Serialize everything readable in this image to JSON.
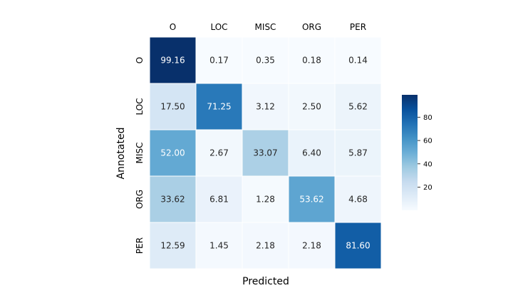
{
  "chart_data": {
    "type": "heatmap",
    "title": "",
    "xlabel": "Predicted",
    "ylabel": "Annotated",
    "x_categories": [
      "O",
      "LOC",
      "MISC",
      "ORG",
      "PER"
    ],
    "y_categories": [
      "O",
      "LOC",
      "MISC",
      "ORG",
      "PER"
    ],
    "x_tick_position": "top",
    "values": [
      [
        99.16,
        0.17,
        0.35,
        0.18,
        0.14
      ],
      [
        17.5,
        71.25,
        3.12,
        2.5,
        5.62
      ],
      [
        52.0,
        2.67,
        33.07,
        6.4,
        5.87
      ],
      [
        33.62,
        6.81,
        1.28,
        53.62,
        4.68
      ],
      [
        12.59,
        1.45,
        2.18,
        2.18,
        81.6
      ]
    ],
    "value_labels": [
      [
        "99.16",
        "0.17",
        "0.35",
        "0.18",
        "0.14"
      ],
      [
        "17.50",
        "71.25",
        "3.12",
        "2.50",
        "5.62"
      ],
      [
        "52.00",
        "2.67",
        "33.07",
        "6.40",
        "5.87"
      ],
      [
        "33.62",
        "6.81",
        "1.28",
        "53.62",
        "4.68"
      ],
      [
        "12.59",
        "1.45",
        "2.18",
        "2.18",
        "81.60"
      ]
    ],
    "colormap": "Blues",
    "colorbar": {
      "min": 0.14,
      "max": 99.16,
      "ticks": [
        20,
        40,
        60,
        80
      ],
      "tick_labels": [
        "20",
        "40",
        "60",
        "80"
      ],
      "placement": "right"
    },
    "grid": false
  }
}
